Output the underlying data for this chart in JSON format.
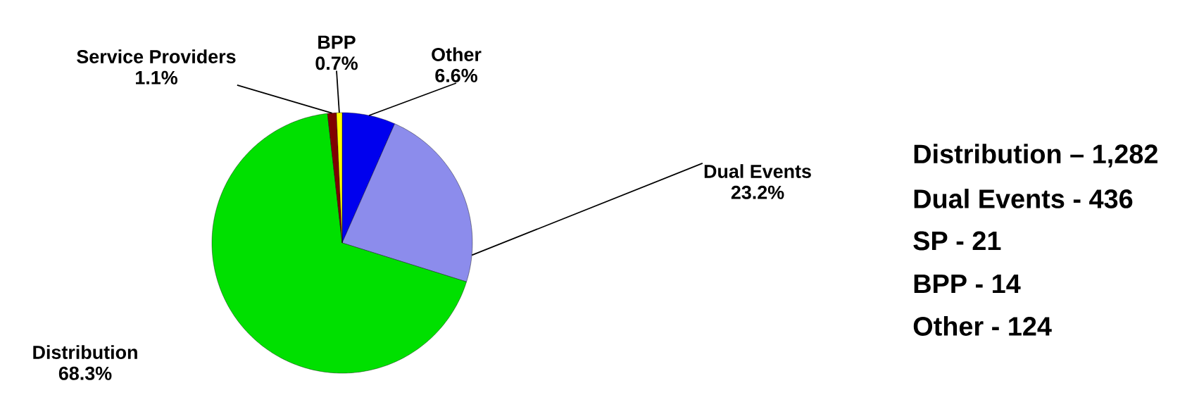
{
  "chart_data": {
    "type": "pie",
    "categories": [
      "Other",
      "Dual Events",
      "Distribution",
      "Service Providers",
      "BPP"
    ],
    "values": [
      6.6,
      23.2,
      68.3,
      1.1,
      0.7
    ],
    "value_labels": [
      "6.6%",
      "23.2%",
      "68.3%",
      "1.1%",
      "0.7%"
    ],
    "colors": [
      "#0000ee",
      "#8c8cec",
      "#00e000",
      "#800000",
      "#ffff00"
    ],
    "annotations": [
      "Distribution – 1,282",
      "Dual Events - 436",
      "SP - 21",
      "BPP - 14",
      "Other - 124"
    ]
  }
}
